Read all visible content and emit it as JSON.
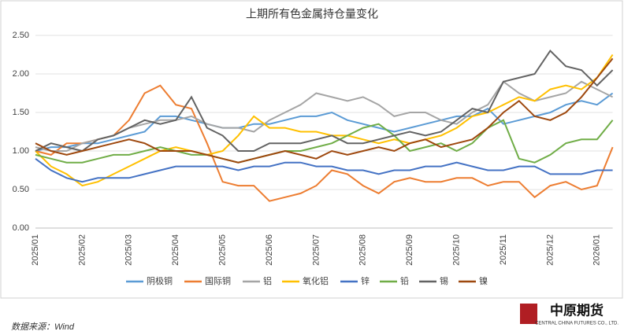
{
  "chart_data": {
    "type": "line",
    "title": "上期所有色金属持仓量变化",
    "categories": [
      "2025/01",
      null,
      null,
      "2025/02",
      null,
      null,
      "2025/03",
      null,
      null,
      "2025/04",
      null,
      null,
      "2025/05",
      null,
      null,
      "2025/06",
      null,
      null,
      "2025/07",
      null,
      null,
      "2025/08",
      null,
      null,
      "2025/09",
      null,
      null,
      "2025/10",
      null,
      null,
      "2025/11",
      null,
      null,
      "2025/12",
      null,
      null,
      "2026/01",
      null
    ],
    "ylim": [
      0,
      2.5
    ],
    "yticks": [
      {
        "value": 0,
        "label": "0.00"
      },
      {
        "value": 0.5,
        "label": "0.50"
      },
      {
        "value": 1,
        "label": "1.00"
      },
      {
        "value": 1.5,
        "label": "1.50"
      },
      {
        "value": 2,
        "label": "2.00"
      },
      {
        "value": 2.5,
        "label": "2.50"
      }
    ],
    "grid": true,
    "legend": "bottom",
    "series": [
      {
        "name": "阴极铜",
        "color": "#5b9bd5",
        "values": [
          1.0,
          1.05,
          1.05,
          1.1,
          1.1,
          1.15,
          1.2,
          1.25,
          1.45,
          1.45,
          1.4,
          1.35,
          1.3,
          1.3,
          1.35,
          1.35,
          1.4,
          1.45,
          1.45,
          1.5,
          1.4,
          1.35,
          1.3,
          1.25,
          1.3,
          1.35,
          1.4,
          1.45,
          1.45,
          1.55,
          1.35,
          1.4,
          1.45,
          1.5,
          1.6,
          1.65,
          1.6,
          1.75
        ]
      },
      {
        "name": "国际铜",
        "color": "#ed7d31",
        "values": [
          1.0,
          0.95,
          1.1,
          1.1,
          1.15,
          1.2,
          1.4,
          1.75,
          1.85,
          1.6,
          1.55,
          1.1,
          0.6,
          0.55,
          0.55,
          0.35,
          0.4,
          0.45,
          0.55,
          0.75,
          0.7,
          0.55,
          0.45,
          0.6,
          0.65,
          0.6,
          0.6,
          0.65,
          0.65,
          0.55,
          0.6,
          0.6,
          0.4,
          0.55,
          0.6,
          0.5,
          0.55,
          1.05
        ]
      },
      {
        "name": "铝",
        "color": "#a5a5a5",
        "values": [
          1.05,
          1.0,
          1.0,
          1.1,
          1.15,
          1.2,
          1.3,
          1.35,
          1.4,
          1.4,
          1.45,
          1.35,
          1.3,
          1.3,
          1.25,
          1.4,
          1.5,
          1.6,
          1.75,
          1.7,
          1.65,
          1.7,
          1.6,
          1.45,
          1.5,
          1.5,
          1.4,
          1.35,
          1.5,
          1.6,
          1.9,
          1.75,
          1.65,
          1.7,
          1.75,
          1.9,
          1.8,
          1.7
        ]
      },
      {
        "name": "氧化铝",
        "color": "#ffc000",
        "values": [
          1.0,
          0.8,
          0.7,
          0.55,
          0.6,
          0.7,
          0.8,
          0.9,
          1.0,
          1.05,
          1.0,
          0.95,
          1.0,
          1.2,
          1.45,
          1.3,
          1.3,
          1.25,
          1.25,
          1.2,
          1.2,
          1.15,
          1.1,
          1.15,
          1.1,
          1.15,
          1.2,
          1.3,
          1.45,
          1.5,
          1.6,
          1.7,
          1.65,
          1.8,
          1.85,
          1.8,
          1.95,
          2.25
        ]
      },
      {
        "name": "锌",
        "color": "#4472c4",
        "values": [
          0.9,
          0.75,
          0.65,
          0.6,
          0.65,
          0.65,
          0.65,
          0.7,
          0.75,
          0.8,
          0.8,
          0.8,
          0.8,
          0.75,
          0.8,
          0.8,
          0.85,
          0.85,
          0.8,
          0.8,
          0.75,
          0.75,
          0.7,
          0.75,
          0.75,
          0.8,
          0.8,
          0.85,
          0.8,
          0.75,
          0.75,
          0.8,
          0.8,
          0.7,
          0.7,
          0.7,
          0.75,
          0.75
        ]
      },
      {
        "name": "铅",
        "color": "#70ad47",
        "values": [
          0.95,
          0.9,
          0.85,
          0.85,
          0.9,
          0.95,
          0.95,
          1.0,
          1.05,
          1.0,
          0.95,
          0.95,
          0.9,
          0.85,
          0.9,
          0.95,
          1.0,
          1.0,
          1.05,
          1.1,
          1.2,
          1.3,
          1.35,
          1.2,
          1.0,
          1.05,
          1.1,
          1.0,
          1.1,
          1.3,
          1.4,
          0.9,
          0.85,
          0.95,
          1.1,
          1.15,
          1.15,
          1.4
        ]
      },
      {
        "name": "锡",
        "color": "#636363",
        "values": [
          1.0,
          1.1,
          1.05,
          1.0,
          1.15,
          1.2,
          1.3,
          1.4,
          1.35,
          1.4,
          1.7,
          1.3,
          1.2,
          1.0,
          1.0,
          1.1,
          1.1,
          1.1,
          1.15,
          1.2,
          1.1,
          1.1,
          1.15,
          1.2,
          1.25,
          1.2,
          1.25,
          1.4,
          1.55,
          1.5,
          1.9,
          1.95,
          2.0,
          2.3,
          2.1,
          2.05,
          1.85,
          2.05
        ]
      },
      {
        "name": "镍",
        "color": "#9e480e",
        "values": [
          1.1,
          1.0,
          0.95,
          1.0,
          1.05,
          1.1,
          1.15,
          1.1,
          1.0,
          1.0,
          1.0,
          0.95,
          0.9,
          0.85,
          0.9,
          0.95,
          1.0,
          0.95,
          0.9,
          1.0,
          0.95,
          1.0,
          1.05,
          1.0,
          1.1,
          1.15,
          1.05,
          1.1,
          1.15,
          1.3,
          1.5,
          1.65,
          1.45,
          1.4,
          1.5,
          1.7,
          1.95,
          2.2
        ]
      }
    ]
  },
  "footer": {
    "source": "数据来源：Wind",
    "logo": "中原期货",
    "logo_sub": "CENTRAL CHINA FUTURES CO., LTD."
  }
}
